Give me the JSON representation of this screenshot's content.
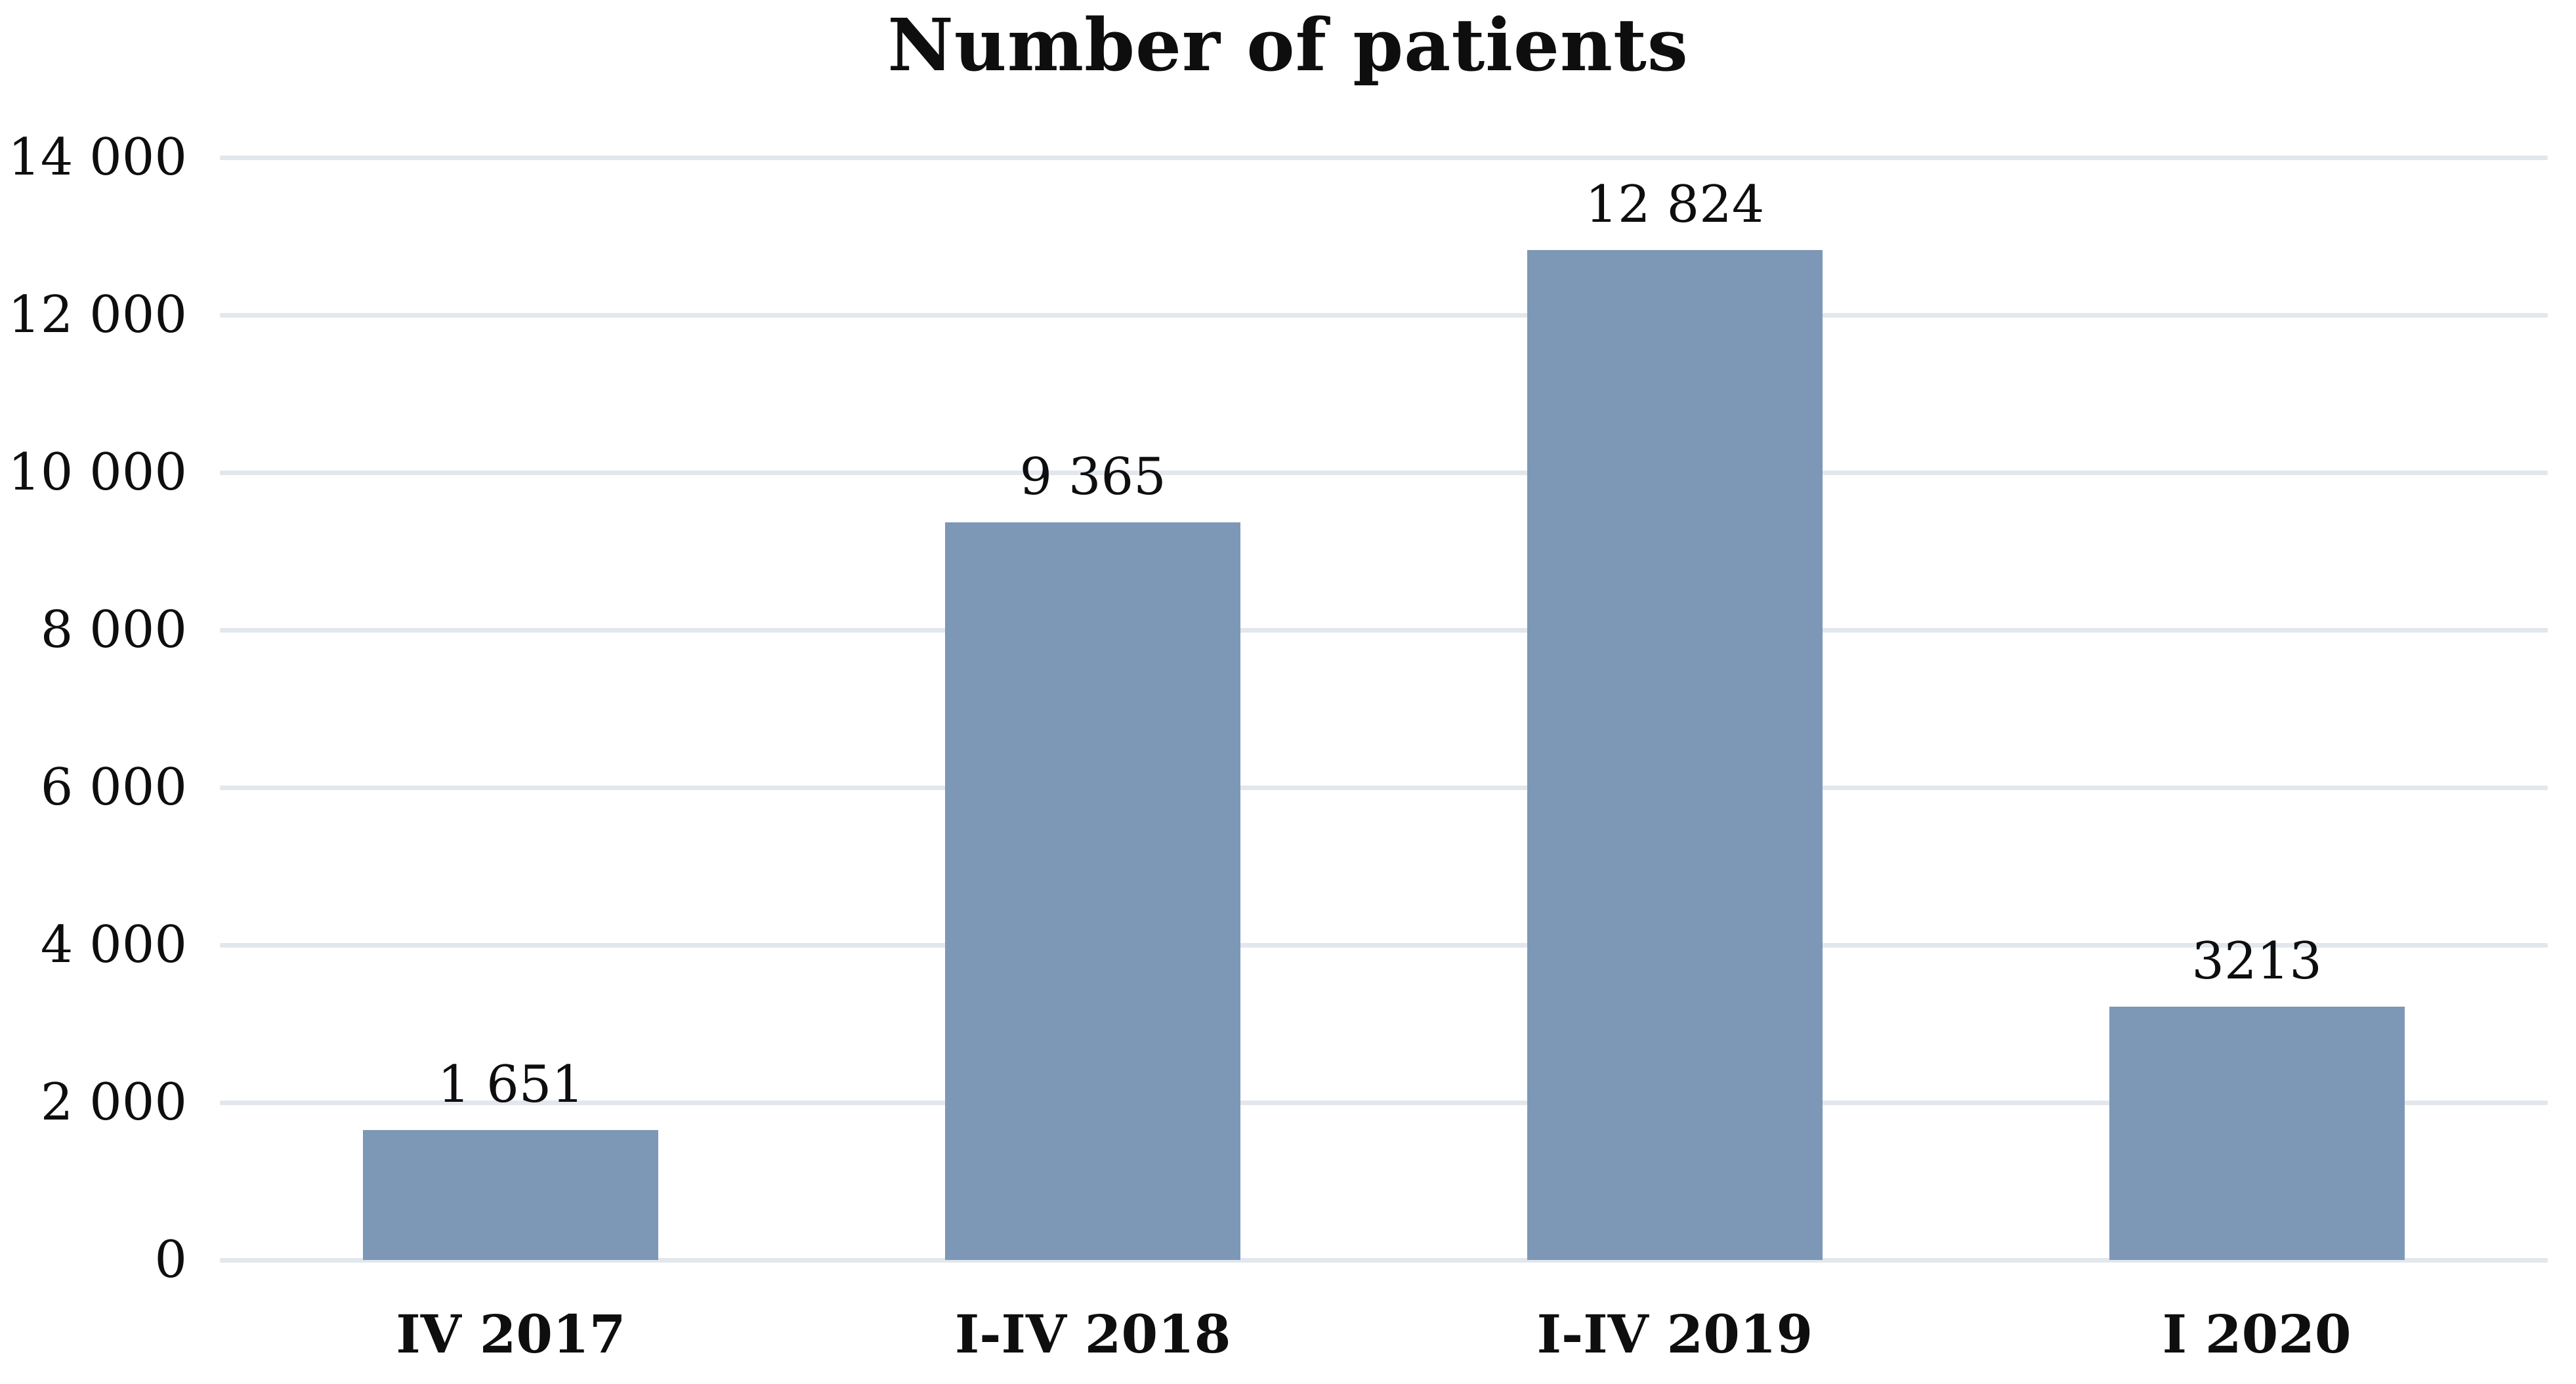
{
  "title": "Number of patients",
  "chart_data": {
    "type": "bar",
    "title": "Number of patients",
    "categories": [
      "IV 2017",
      "I-IV 2018",
      "I-IV 2019",
      "I 2020"
    ],
    "values": [
      1651,
      9365,
      12824,
      3213
    ],
    "value_labels": [
      "1 651",
      "9 365",
      "12 824",
      "3213"
    ],
    "xlabel": "",
    "ylabel": "",
    "ylim": [
      0,
      14000
    ],
    "y_tick_step": 2000,
    "y_tick_labels": [
      "0",
      "2 000",
      "4 000",
      "6 000",
      "8 000",
      "10 000",
      "12 000",
      "14 000"
    ],
    "grid": "horizontal gridlines on",
    "legend": "none",
    "colors": {
      "bar": "#7C98B6",
      "gridline": "#E2E7ED",
      "text": "#0E0E0E",
      "background": "#FFFFFF"
    }
  }
}
